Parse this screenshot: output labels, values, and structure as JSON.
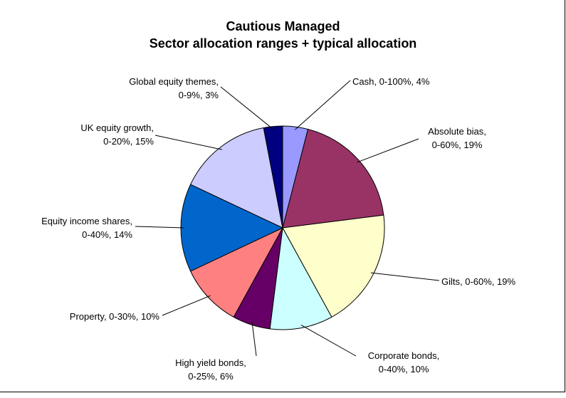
{
  "chart_data": {
    "type": "pie",
    "title": "Cautious Managed",
    "subtitle": "Sector allocation ranges + typical allocation",
    "slices": [
      {
        "label_line1": "Cash, 0-100%, 4%",
        "label_line2": "",
        "value": 4,
        "color": "#9999ff"
      },
      {
        "label_line1": "Absolute bias,",
        "label_line2": "0-60%, 19%",
        "value": 19,
        "color": "#993366"
      },
      {
        "label_line1": "Gilts, 0-60%, 19%",
        "label_line2": "",
        "value": 19,
        "color": "#ffffcc"
      },
      {
        "label_line1": "Corporate bonds,",
        "label_line2": "0-40%, 10%",
        "value": 10,
        "color": "#ccffff"
      },
      {
        "label_line1": "High yield bonds,",
        "label_line2": "0-25%, 6%",
        "value": 6,
        "color": "#660066"
      },
      {
        "label_line1": "Property, 0-30%, 10%",
        "label_line2": "",
        "value": 10,
        "color": "#ff8080"
      },
      {
        "label_line1": "Equity income shares,",
        "label_line2": "0-40%, 14%",
        "value": 14,
        "color": "#0066cc"
      },
      {
        "label_line1": "UK equity growth,",
        "label_line2": "0-20%, 15%",
        "value": 15,
        "color": "#ccccff"
      },
      {
        "label_line1": "Global equity themes,",
        "label_line2": "0-9%, 3%",
        "value": 3,
        "color": "#000080"
      }
    ]
  }
}
